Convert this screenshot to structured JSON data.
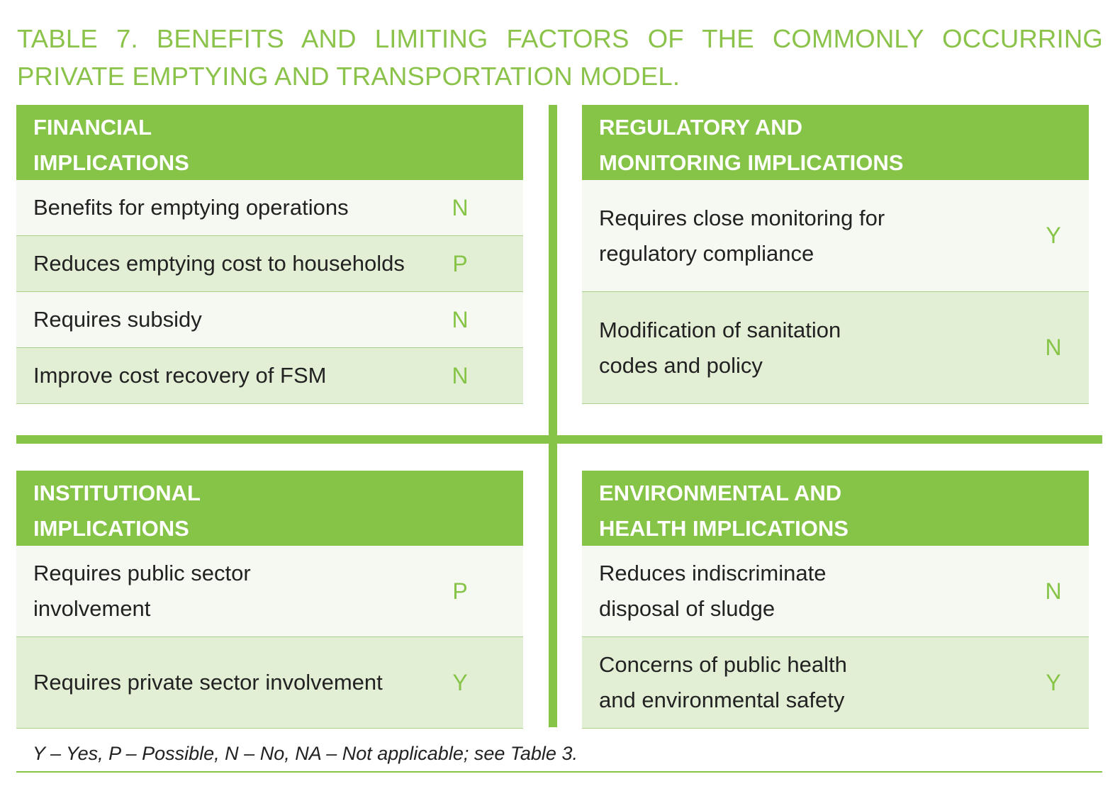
{
  "title": "TABLE 7. BENEFITS AND LIMITING FACTORS OF THE COMMONLY OCCURRING PRIVATE EMPTYING AND TRANSPORTATION MODEL.",
  "panels": {
    "financial": {
      "heading_line1": "FINANCIAL",
      "heading_line2": "IMPLICATIONS",
      "rows": [
        {
          "label": "Benefits for emptying operations",
          "value": "N"
        },
        {
          "label": "Reduces emptying cost to households",
          "value": "P"
        },
        {
          "label": "Requires subsidy",
          "value": "N"
        },
        {
          "label": "Improve cost recovery of FSM",
          "value": "N"
        }
      ]
    },
    "regulatory": {
      "heading_line1": "REGULATORY AND",
      "heading_line2": "MONITORING IMPLICATIONS",
      "rows": [
        {
          "label_line1": "Requires close monitoring for",
          "label_line2": "regulatory compliance",
          "value": "Y"
        },
        {
          "label_line1": "Modification of sanitation",
          "label_line2": "codes and policy",
          "value": "N"
        }
      ]
    },
    "institutional": {
      "heading_line1": "INSTITUTIONAL",
      "heading_line2": "IMPLICATIONS",
      "rows": [
        {
          "label_line1": "Requires public sector",
          "label_line2": "involvement",
          "value": "P"
        },
        {
          "label": "Requires private sector involvement",
          "value": "Y"
        }
      ]
    },
    "environmental": {
      "heading_line1": "ENVIRONMENTAL AND",
      "heading_line2": "HEALTH IMPLICATIONS",
      "rows": [
        {
          "label_line1": "Reduces indiscriminate",
          "label_line2": "disposal of sludge",
          "value": "N"
        },
        {
          "label_line1": "Concerns of public health",
          "label_line2": "and environmental safety",
          "value": "Y"
        }
      ]
    }
  },
  "footnote": "Y – Yes, P – Possible, N – No, NA – Not applicable; see Table 3.",
  "colors": {
    "accent": "#86c447",
    "row_light": "#f6f9f1",
    "row_dark": "#e3efd5",
    "text": "#222222"
  }
}
